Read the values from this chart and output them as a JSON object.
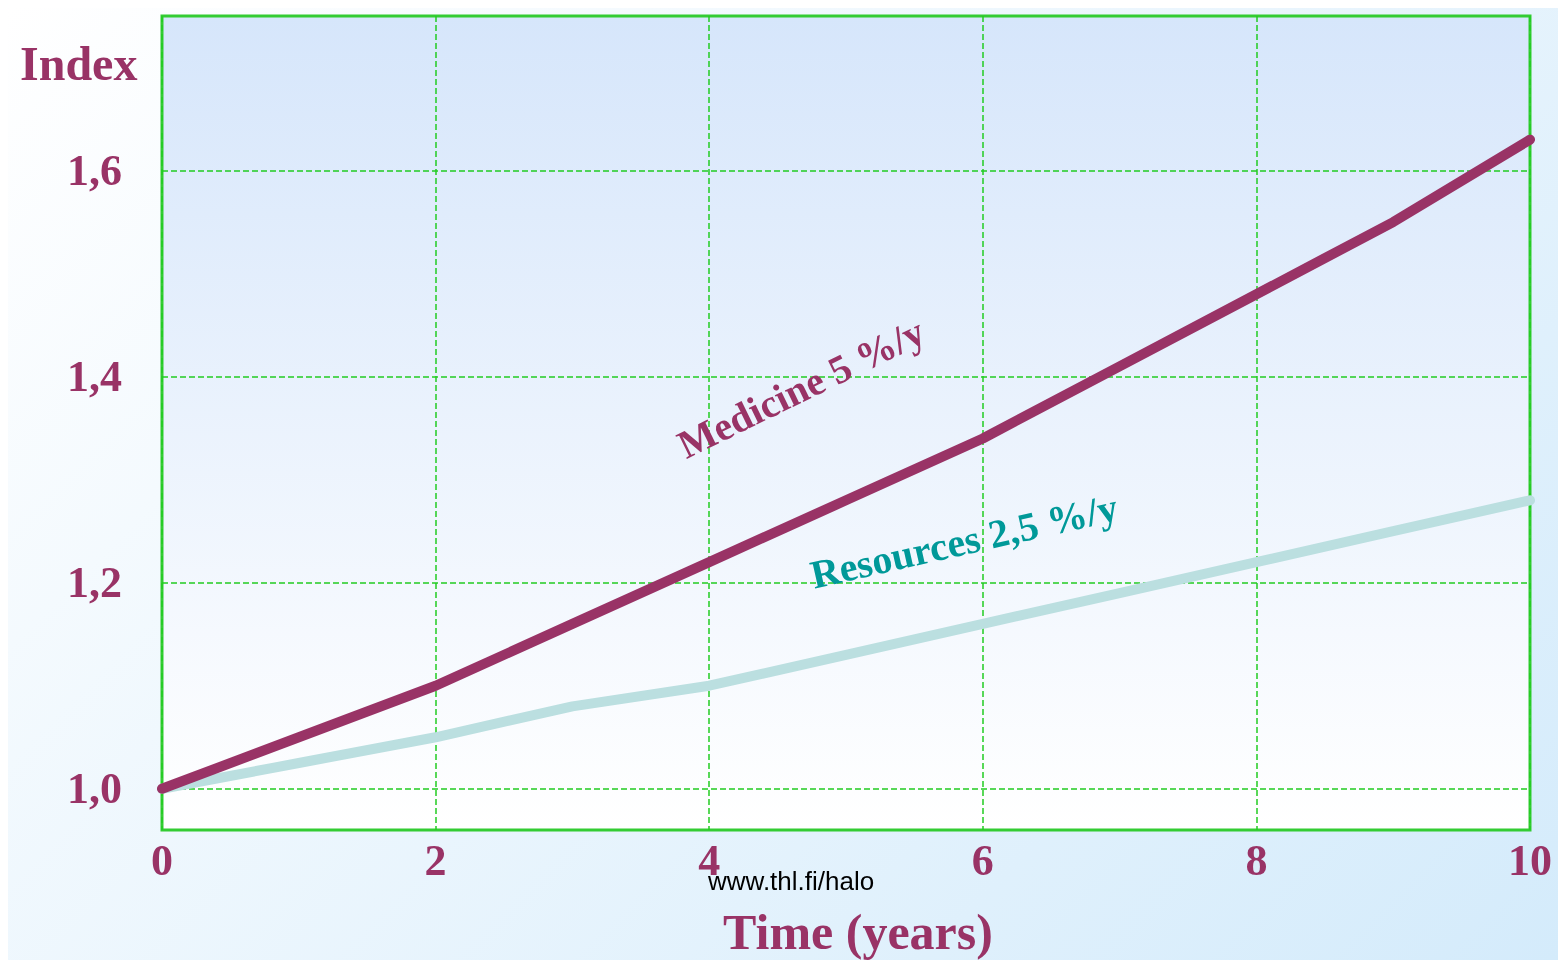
{
  "chart_data": {
    "type": "line",
    "xlabel": "Time (years)",
    "ylabel": "Index",
    "x": [
      0,
      1,
      2,
      3,
      4,
      5,
      6,
      7,
      8,
      9,
      10
    ],
    "series": [
      {
        "name": "Medicine 5 %/y",
        "color": "#993366",
        "values": [
          1.0,
          1.05,
          1.1,
          1.16,
          1.22,
          1.28,
          1.34,
          1.41,
          1.48,
          1.55,
          1.63
        ]
      },
      {
        "name": "Resources 2,5 %/y",
        "color": "#bbdfe0",
        "values": [
          1.0,
          1.025,
          1.05,
          1.08,
          1.1,
          1.13,
          1.16,
          1.19,
          1.22,
          1.25,
          1.28
        ]
      }
    ],
    "xlim": [
      0,
      10
    ],
    "xticks": [
      0,
      2,
      4,
      6,
      8,
      10
    ],
    "ylim": [
      0.96,
      1.75
    ],
    "yticks": [
      {
        "value": 1.0,
        "label": "1,0"
      },
      {
        "value": 1.2,
        "label": "1,2"
      },
      {
        "value": 1.4,
        "label": "1,4"
      },
      {
        "value": 1.6,
        "label": "1,6"
      }
    ],
    "grid": true,
    "legend": false,
    "marker": "none",
    "line_style": "solid",
    "annotations": [
      "www.thl.fi/halo"
    ]
  }
}
